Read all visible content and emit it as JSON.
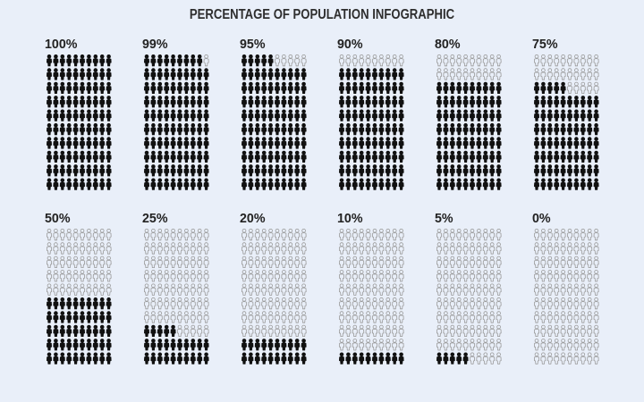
{
  "title": "PERCENTAGE OF POPULATION INFOGRAPHIC",
  "colors": {
    "background": "#e9eff9",
    "filled": "#111111",
    "empty_outline": "#9a9a9a"
  },
  "icon": "person-icon",
  "grid": {
    "rows": 10,
    "columns": 10
  },
  "panels": [
    {
      "label": "100%",
      "value": 100
    },
    {
      "label": "99%",
      "value": 99
    },
    {
      "label": "95%",
      "value": 95
    },
    {
      "label": "90%",
      "value": 90
    },
    {
      "label": "80%",
      "value": 80
    },
    {
      "label": "75%",
      "value": 75
    },
    {
      "label": "50%",
      "value": 50
    },
    {
      "label": "25%",
      "value": 25
    },
    {
      "label": "20%",
      "value": 20
    },
    {
      "label": "10%",
      "value": 10
    },
    {
      "label": "5%",
      "value": 5
    },
    {
      "label": "0%",
      "value": 0
    }
  ]
}
